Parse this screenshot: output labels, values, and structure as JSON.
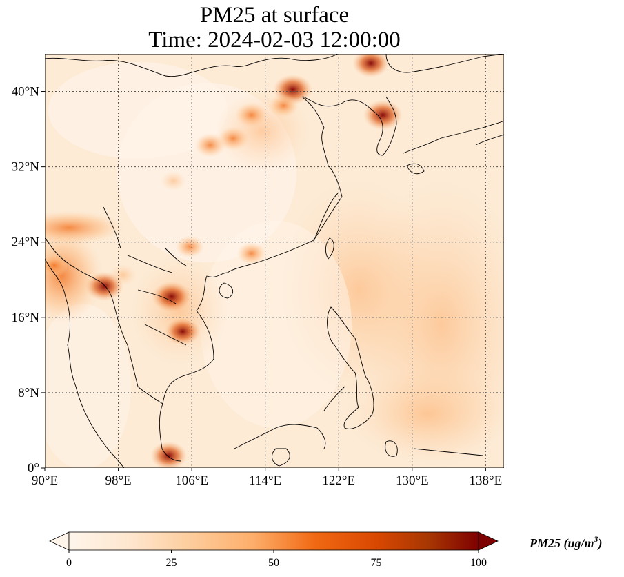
{
  "title": {
    "line1": "PM25 at surface",
    "line2": "Time: 2024-02-03 12:00:00"
  },
  "map": {
    "lon_range": [
      90,
      140
    ],
    "lat_range": [
      0,
      44
    ],
    "x_ticks": [
      {
        "value": 90,
        "label": "90°E"
      },
      {
        "value": 98,
        "label": "98°E"
      },
      {
        "value": 106,
        "label": "106°E"
      },
      {
        "value": 114,
        "label": "114°E"
      },
      {
        "value": 122,
        "label": "122°E"
      },
      {
        "value": 130,
        "label": "130°E"
      },
      {
        "value": 138,
        "label": "138°E"
      }
    ],
    "y_ticks": [
      {
        "value": 0,
        "label": "0°"
      },
      {
        "value": 8,
        "label": "8°N"
      },
      {
        "value": 16,
        "label": "16°N"
      },
      {
        "value": 24,
        "label": "24°N"
      },
      {
        "value": 32,
        "label": "32°N"
      },
      {
        "value": 40,
        "label": "40°N"
      }
    ],
    "gridlines": true,
    "hotspots": [
      {
        "lon": 117.0,
        "lat": 40.2,
        "value": 100
      },
      {
        "lon": 112.5,
        "lat": 37.5,
        "value": 75
      },
      {
        "lon": 110.5,
        "lat": 35.0,
        "value": 70
      },
      {
        "lon": 108.0,
        "lat": 34.3,
        "value": 70
      },
      {
        "lon": 116.0,
        "lat": 38.5,
        "value": 65
      },
      {
        "lon": 126.8,
        "lat": 37.5,
        "value": 100
      },
      {
        "lon": 125.5,
        "lat": 43.0,
        "value": 90
      },
      {
        "lon": 103.8,
        "lat": 18.2,
        "value": 100
      },
      {
        "lon": 105.0,
        "lat": 14.5,
        "value": 85
      },
      {
        "lon": 96.5,
        "lat": 19.3,
        "value": 95
      },
      {
        "lon": 91.0,
        "lat": 21.5,
        "value": 60
      },
      {
        "lon": 105.8,
        "lat": 23.5,
        "value": 60
      },
      {
        "lon": 112.5,
        "lat": 22.8,
        "value": 60
      },
      {
        "lon": 98.5,
        "lat": 20.5,
        "value": 55
      },
      {
        "lon": 103.5,
        "lat": 1.3,
        "value": 90
      },
      {
        "lon": 104.0,
        "lat": 30.5,
        "value": 50
      }
    ],
    "colors": {
      "c0": "#fff5eb",
      "c25": "#fdd0a2",
      "c50": "#f16913",
      "c75": "#d94801",
      "c100": "#7f0000",
      "grid": "#555555",
      "coast": "#000000"
    }
  },
  "colorbar": {
    "min": 0,
    "max": 100,
    "ticks": [
      {
        "value": 0,
        "label": "0"
      },
      {
        "value": 25,
        "label": "25"
      },
      {
        "value": 50,
        "label": "50"
      },
      {
        "value": 75,
        "label": "75"
      },
      {
        "value": 100,
        "label": "100"
      }
    ],
    "label": "PM25 (ug/m",
    "label_sup": "3",
    "label_end": ")"
  }
}
